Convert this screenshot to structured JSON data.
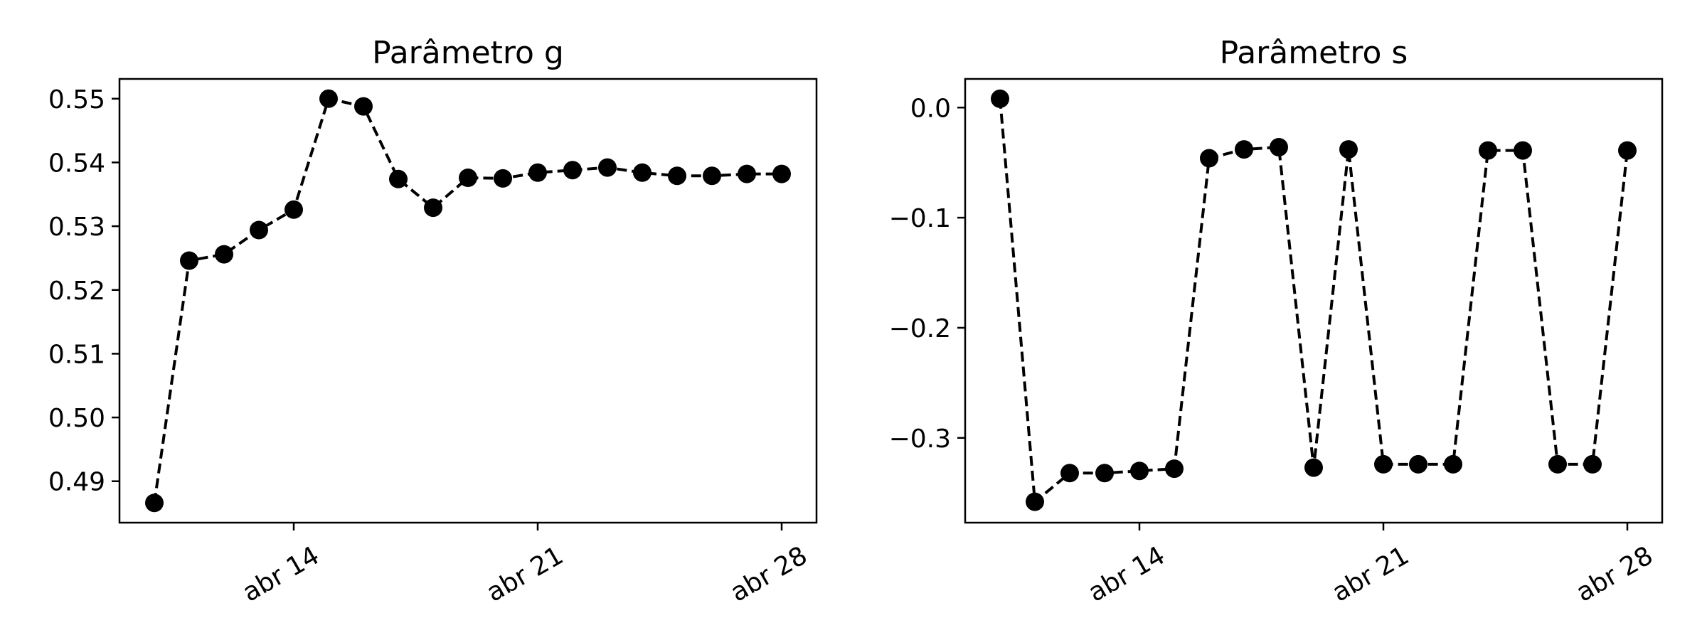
{
  "chart_data": [
    {
      "type": "line",
      "title": "Parâmetro g",
      "xlabel": "",
      "ylabel": "",
      "x": [
        "2020-04-10",
        "2020-04-11",
        "2020-04-12",
        "2020-04-13",
        "2020-04-14",
        "2020-04-15",
        "2020-04-16",
        "2020-04-17",
        "2020-04-18",
        "2020-04-19",
        "2020-04-20",
        "2020-04-21",
        "2020-04-22",
        "2020-04-23",
        "2020-04-24",
        "2020-04-25",
        "2020-04-26",
        "2020-04-27",
        "2020-04-28"
      ],
      "series": [
        {
          "values": [
            0.4866,
            0.5246,
            0.5256,
            0.5294,
            0.5326,
            0.55,
            0.5488,
            0.5374,
            0.5329,
            0.5376,
            0.5375,
            0.5384,
            0.5388,
            0.5392,
            0.5384,
            0.5379,
            0.5379,
            0.5382,
            0.5382
          ]
        }
      ],
      "style": {
        "color": "#000000",
        "linestyle": "dashed",
        "marker": "circle"
      },
      "xticks": [
        {
          "date": "2020-04-14",
          "label": "abr 14"
        },
        {
          "date": "2020-04-21",
          "label": "abr 21"
        },
        {
          "date": "2020-04-28",
          "label": "abr 28"
        }
      ],
      "yticks": [
        {
          "value": 0.49,
          "label": "0.49"
        },
        {
          "value": 0.5,
          "label": "0.50"
        },
        {
          "value": 0.51,
          "label": "0.51"
        },
        {
          "value": 0.52,
          "label": "0.52"
        },
        {
          "value": 0.53,
          "label": "0.53"
        },
        {
          "value": 0.54,
          "label": "0.54"
        },
        {
          "value": 0.55,
          "label": "0.55"
        }
      ],
      "xlim": [
        "2020-04-09",
        "2020-04-29"
      ],
      "ylim": [
        0.4835,
        0.5531
      ],
      "grid": false
    },
    {
      "type": "line",
      "title": "Parâmetro s",
      "xlabel": "",
      "ylabel": "",
      "x": [
        "2020-04-10",
        "2020-04-11",
        "2020-04-12",
        "2020-04-13",
        "2020-04-14",
        "2020-04-15",
        "2020-04-16",
        "2020-04-17",
        "2020-04-18",
        "2020-04-19",
        "2020-04-20",
        "2020-04-21",
        "2020-04-22",
        "2020-04-23",
        "2020-04-24",
        "2020-04-25",
        "2020-04-26",
        "2020-04-27",
        "2020-04-28"
      ],
      "series": [
        {
          "values": [
            0.008,
            -0.358,
            -0.332,
            -0.332,
            -0.33,
            -0.328,
            -0.046,
            -0.038,
            -0.036,
            -0.327,
            -0.038,
            -0.324,
            -0.324,
            -0.324,
            -0.039,
            -0.039,
            -0.324,
            -0.324,
            -0.039
          ]
        }
      ],
      "style": {
        "color": "#000000",
        "linestyle": "dashed",
        "marker": "circle"
      },
      "xticks": [
        {
          "date": "2020-04-14",
          "label": "abr 14"
        },
        {
          "date": "2020-04-21",
          "label": "abr 21"
        },
        {
          "date": "2020-04-28",
          "label": "abr 28"
        }
      ],
      "yticks": [
        {
          "value": 0.0,
          "label": "0.0"
        },
        {
          "value": -0.1,
          "label": "−0.1"
        },
        {
          "value": -0.2,
          "label": "−0.2"
        },
        {
          "value": -0.3,
          "label": "−0.3"
        }
      ],
      "xlim": [
        "2020-04-09",
        "2020-04-29"
      ],
      "ylim": [
        -0.377,
        0.026
      ],
      "grid": false
    }
  ]
}
